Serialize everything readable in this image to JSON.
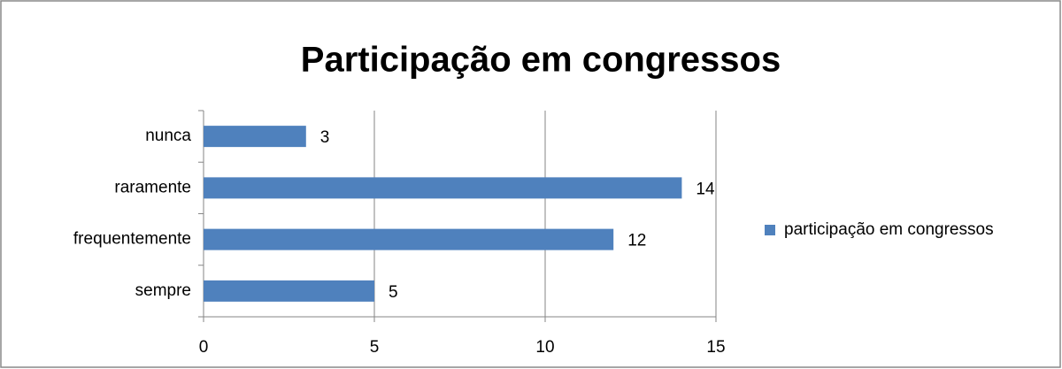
{
  "chart_data": {
    "type": "bar",
    "orientation": "horizontal",
    "title": "Participação em congressos",
    "categories": [
      "nunca",
      "raramente",
      "frequentemente",
      "sempre"
    ],
    "series": [
      {
        "name": "participação em congressos",
        "color": "#4f81bd",
        "values": [
          3,
          14,
          12,
          5
        ]
      }
    ],
    "xlim": [
      0,
      15
    ],
    "xticks": [
      0,
      5,
      10,
      15
    ],
    "grid": true,
    "legend": "right"
  }
}
